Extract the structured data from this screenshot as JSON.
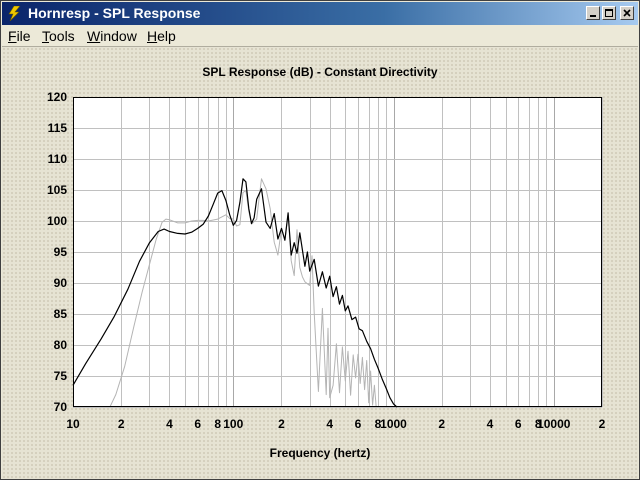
{
  "window": {
    "title": "Hornresp - SPL Response",
    "icon": "lightning-bolt-icon",
    "controls": [
      "minimize-icon",
      "maximize-icon",
      "close-icon"
    ]
  },
  "menu": {
    "file": {
      "accel": "F",
      "rest": "ile"
    },
    "tools": {
      "accel": "T",
      "rest": "ools"
    },
    "window": {
      "accel": "W",
      "rest": "indow"
    },
    "help": {
      "accel": "H",
      "rest": "elp"
    }
  },
  "chart_data": {
    "type": "line",
    "title": "SPL Response (dB) - Constant Directivity",
    "xlabel": "Frequency (hertz)",
    "ylabel": "",
    "xscale": "log",
    "xlim": [
      10,
      20000
    ],
    "ylim": [
      70,
      120
    ],
    "grid": true,
    "legend": "none",
    "y_ticks": [
      70,
      75,
      80,
      85,
      90,
      95,
      100,
      105,
      110,
      115,
      120
    ],
    "x_tick_labels": [
      {
        "x": 10,
        "label": "10"
      },
      {
        "x": 20,
        "label": "2"
      },
      {
        "x": 40,
        "label": "4"
      },
      {
        "x": 60,
        "label": "6"
      },
      {
        "x": 80,
        "label": "8"
      },
      {
        "x": 100,
        "label": "100"
      },
      {
        "x": 200,
        "label": "2"
      },
      {
        "x": 400,
        "label": "4"
      },
      {
        "x": 600,
        "label": "6"
      },
      {
        "x": 800,
        "label": "8"
      },
      {
        "x": 1000,
        "label": "1000"
      },
      {
        "x": 2000,
        "label": "2"
      },
      {
        "x": 4000,
        "label": "4"
      },
      {
        "x": 6000,
        "label": "6"
      },
      {
        "x": 8000,
        "label": "8"
      },
      {
        "x": 10000,
        "label": "10000"
      },
      {
        "x": 20000,
        "label": "2"
      }
    ],
    "colors": {
      "primary": "#000000",
      "secondary": "#b4b4b4",
      "grid": "#c0c0c0",
      "plot_bg": "#ffffff"
    },
    "series": [
      {
        "role": "primary",
        "x": [
          10,
          12,
          15,
          18,
          22,
          26,
          30,
          34,
          37,
          40,
          45,
          50,
          55,
          60,
          65,
          70,
          75,
          80,
          85,
          90,
          95,
          100,
          105,
          110,
          115,
          120,
          125,
          130,
          135,
          140,
          150,
          160,
          170,
          180,
          190,
          200,
          210,
          220,
          230,
          240,
          250,
          260,
          280,
          290,
          300,
          320,
          340,
          360,
          380,
          400,
          420,
          440,
          460,
          480,
          500,
          520,
          550,
          580,
          610,
          640,
          680,
          720,
          760,
          800,
          850,
          900,
          950,
          1000,
          1050
        ],
        "y": [
          73.5,
          77,
          81,
          84.5,
          89,
          93.5,
          96.5,
          98.3,
          98.7,
          98.3,
          98,
          97.9,
          98.2,
          98.8,
          99.5,
          100.8,
          102.7,
          104.5,
          104.9,
          103.3,
          101,
          99.3,
          100.1,
          103,
          106.8,
          106.3,
          102,
          99.6,
          100.5,
          103.5,
          105.2,
          99.8,
          98.8,
          101.2,
          97.1,
          98.8,
          96.9,
          101.3,
          94.5,
          96.5,
          94.8,
          98.1,
          92.7,
          95,
          91.9,
          93.8,
          89.5,
          91.8,
          89.2,
          91.1,
          87.8,
          89.4,
          86.6,
          88,
          85.5,
          86.3,
          84.1,
          84.5,
          82.6,
          82.3,
          80.6,
          79.4,
          77.7,
          76.3,
          74.5,
          73,
          71.5,
          70.5,
          70
        ]
      },
      {
        "role": "secondary",
        "x": [
          17,
          18.5,
          21,
          24,
          27,
          30,
          33,
          36,
          38,
          40,
          45,
          50,
          55,
          60,
          65,
          70,
          80,
          90,
          95,
          100,
          105,
          110,
          115,
          120,
          125,
          130,
          140,
          145,
          150,
          160,
          170,
          180,
          190,
          200,
          210,
          220,
          230,
          240,
          250,
          260,
          270,
          280,
          300,
          310,
          320,
          340,
          360,
          380,
          390,
          400,
          420,
          440,
          460,
          480,
          500,
          520,
          540,
          560,
          580,
          600,
          620,
          640,
          660,
          680,
          700,
          720,
          740,
          760,
          780
        ],
        "y": [
          70,
          72,
          76.5,
          83,
          88.5,
          93,
          97,
          99.8,
          100.3,
          100.2,
          99.7,
          99.7,
          100,
          100.1,
          100.1,
          100,
          100.3,
          101,
          100.4,
          100.3,
          99.2,
          99.4,
          104.6,
          104.9,
          101.6,
          99.5,
          100.3,
          103.7,
          106.8,
          105.2,
          102,
          96.6,
          94.5,
          98.8,
          96.9,
          101.2,
          93.6,
          91.2,
          98.6,
          92.5,
          91,
          90.2,
          89.6,
          94.4,
          85.2,
          72.5,
          85.9,
          72,
          82.7,
          71.5,
          73.5,
          80.2,
          72.3,
          79.7,
          74.2,
          79,
          71.9,
          78.4,
          74.7,
          78.5,
          73.8,
          78,
          72.8,
          77.5,
          70.7,
          75.8,
          70.3,
          73.5,
          70
        ]
      }
    ]
  }
}
